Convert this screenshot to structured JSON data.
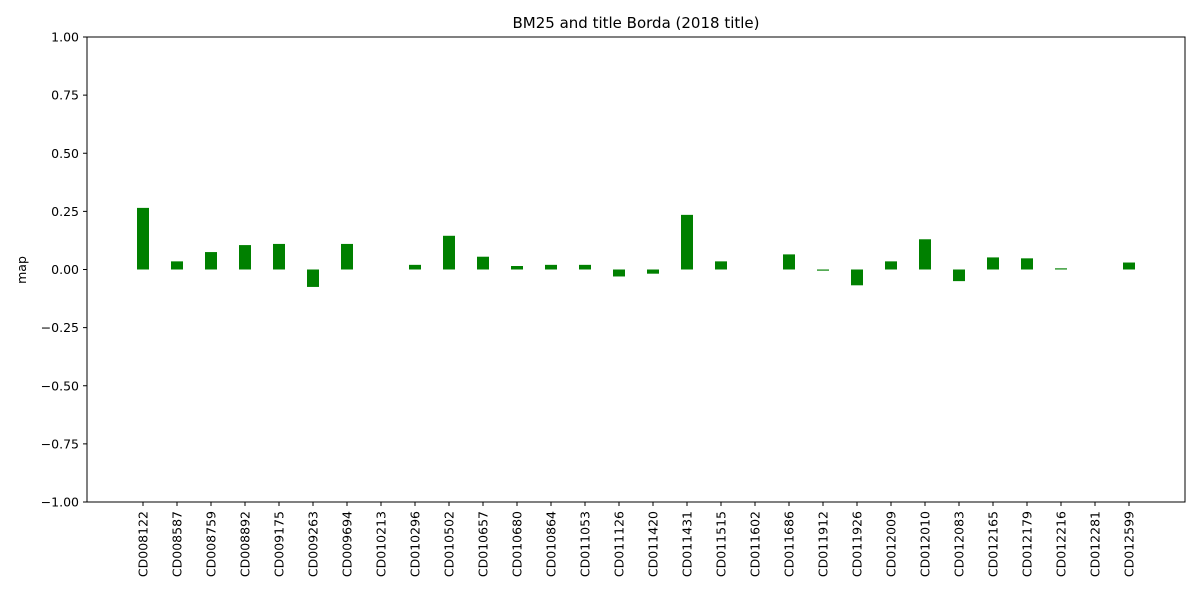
{
  "chart_data": {
    "type": "bar",
    "title": "BM25 and title Borda (2018 title)",
    "xlabel": "",
    "ylabel": "map",
    "ylim": [
      -1.0,
      1.0
    ],
    "yticks": [
      "1.00",
      "0.75",
      "0.50",
      "0.25",
      "0.00",
      "−0.25",
      "−0.50",
      "−0.75",
      "−1.00"
    ],
    "ytick_values": [
      1.0,
      0.75,
      0.5,
      0.25,
      0.0,
      -0.25,
      -0.5,
      -0.75,
      -1.0
    ],
    "grid": false,
    "bar_color": "#008000",
    "categories": [
      "CD008122",
      "CD008587",
      "CD008759",
      "CD008892",
      "CD009175",
      "CD009263",
      "CD009694",
      "CD010213",
      "CD010296",
      "CD010502",
      "CD010657",
      "CD010680",
      "CD010864",
      "CD011053",
      "CD011126",
      "CD011420",
      "CD011431",
      "CD011515",
      "CD011602",
      "CD011686",
      "CD011912",
      "CD011926",
      "CD012009",
      "CD012010",
      "CD012083",
      "CD012165",
      "CD012179",
      "CD012216",
      "CD012281",
      "CD012599"
    ],
    "values": [
      0.265,
      0.035,
      0.075,
      0.105,
      0.11,
      -0.075,
      0.11,
      0.0,
      0.02,
      0.145,
      0.055,
      0.015,
      0.02,
      0.02,
      -0.03,
      -0.018,
      0.235,
      0.035,
      0.0,
      0.065,
      -0.005,
      -0.068,
      0.035,
      0.13,
      -0.05,
      0.052,
      0.048,
      0.005,
      0.0,
      0.03
    ]
  }
}
